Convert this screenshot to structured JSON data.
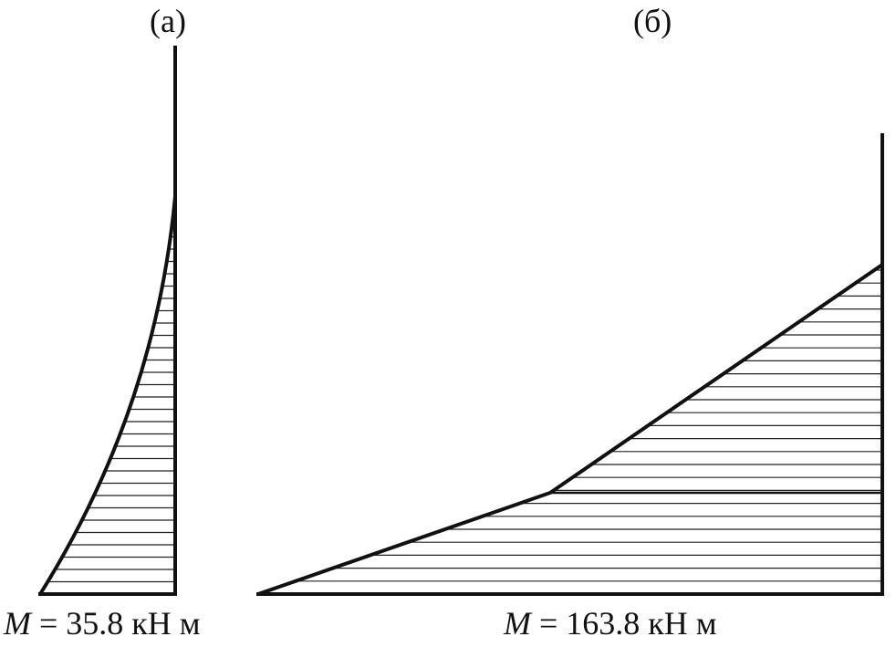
{
  "panels": [
    {
      "label": "(а)",
      "moment_symbol": "M",
      "moment_rest": " = 35.8 кН м"
    },
    {
      "label": "(б)",
      "moment_symbol": "M",
      "moment_rest": " = 163.8 кН м"
    }
  ],
  "colors": {
    "stroke": "#111111",
    "hatch": "#222222",
    "background": "#ffffff"
  }
}
